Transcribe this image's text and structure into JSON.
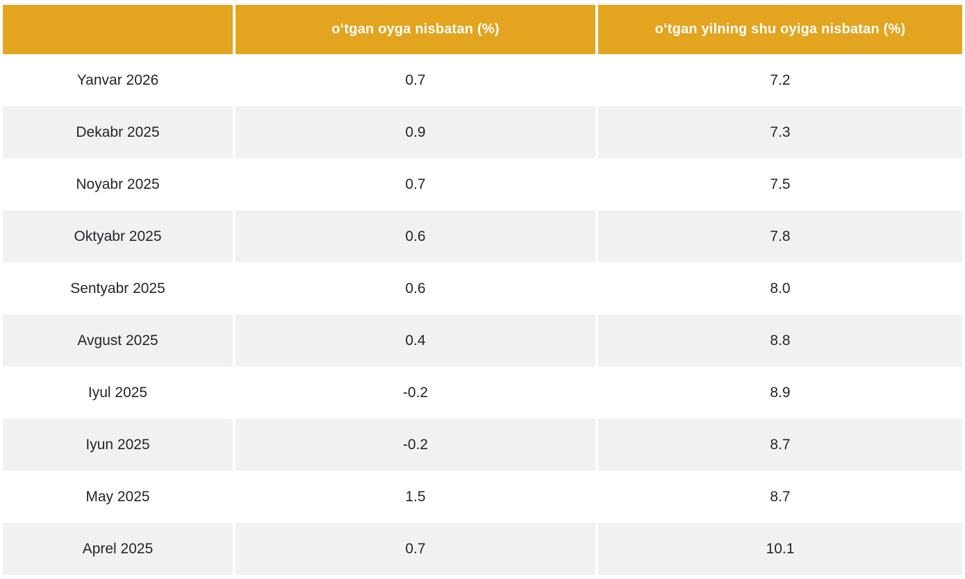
{
  "table": {
    "columns": [
      {
        "label": ""
      },
      {
        "label": "oʻtgan oyga nisbatan (%)"
      },
      {
        "label": "oʻtgan yilning shu oyiga nisbatan (%)"
      }
    ],
    "rows": [
      {
        "month": "Yanvar 2026",
        "mom": "0.7",
        "yoy": "7.2"
      },
      {
        "month": "Dekabr 2025",
        "mom": "0.9",
        "yoy": "7.3"
      },
      {
        "month": "Noyabr 2025",
        "mom": "0.7",
        "yoy": "7.5"
      },
      {
        "month": "Oktyabr 2025",
        "mom": "0.6",
        "yoy": "7.8"
      },
      {
        "month": "Sentyabr 2025",
        "mom": "0.6",
        "yoy": "8.0"
      },
      {
        "month": "Avgust 2025",
        "mom": "0.4",
        "yoy": "8.8"
      },
      {
        "month": "Iyul 2025",
        "mom": "-0.2",
        "yoy": "8.9"
      },
      {
        "month": "Iyun 2025",
        "mom": "-0.2",
        "yoy": "8.7"
      },
      {
        "month": "May 2025",
        "mom": "1.5",
        "yoy": "8.7"
      },
      {
        "month": "Aprel 2025",
        "mom": "0.7",
        "yoy": "10.1"
      }
    ]
  },
  "colors": {
    "header_bg": "#E3A41F",
    "header_text": "#FFFFFF",
    "row_bg": "#FFFFFF",
    "row_alt_bg": "#F1F1F2",
    "cell_text": "#212529"
  },
  "chart_data": {
    "type": "table",
    "title": "",
    "columns": [
      "",
      "oʻtgan oyga nisbatan (%)",
      "oʻtgan yilning shu oyiga nisbatan (%)"
    ],
    "categories": [
      "Yanvar 2026",
      "Dekabr 2025",
      "Noyabr 2025",
      "Oktyabr 2025",
      "Sentyabr 2025",
      "Avgust 2025",
      "Iyul 2025",
      "Iyun 2025",
      "May 2025",
      "Aprel 2025"
    ],
    "series": [
      {
        "name": "oʻtgan oyga nisbatan (%)",
        "values": [
          0.7,
          0.9,
          0.7,
          0.6,
          0.6,
          0.4,
          -0.2,
          -0.2,
          1.5,
          0.7
        ]
      },
      {
        "name": "oʻtgan yilning shu oyiga nisbatan (%)",
        "values": [
          7.2,
          7.3,
          7.5,
          7.8,
          8.0,
          8.8,
          8.9,
          8.7,
          8.7,
          10.1
        ]
      }
    ]
  }
}
